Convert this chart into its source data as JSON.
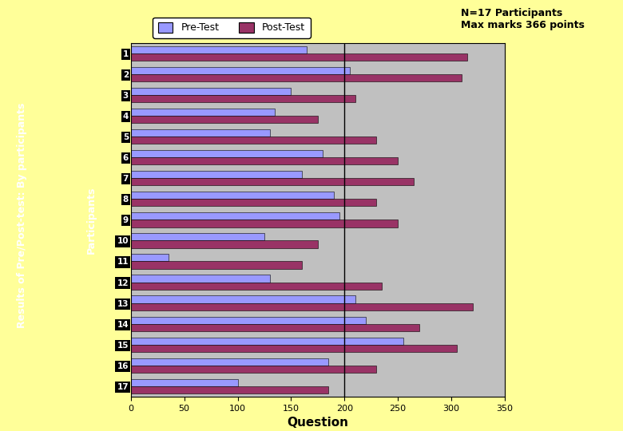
{
  "participants": [
    1,
    2,
    3,
    4,
    5,
    6,
    7,
    8,
    9,
    10,
    11,
    12,
    13,
    14,
    15,
    16,
    17
  ],
  "pre_test": [
    165,
    205,
    150,
    135,
    130,
    180,
    160,
    190,
    195,
    125,
    35,
    130,
    210,
    220,
    255,
    185,
    100
  ],
  "post_test": [
    315,
    310,
    210,
    175,
    230,
    250,
    265,
    230,
    250,
    175,
    160,
    235,
    320,
    270,
    305,
    230,
    185
  ],
  "pre_color": "#9999ff",
  "post_color": "#993366",
  "bg_outer": "#ffff99",
  "bg_left_panel": "#333399",
  "bg_plot": "#c0c0c0",
  "xlabel": "Question",
  "ylabel": "Participants",
  "legend_pre": "Pre-Test",
  "legend_post": "Post-Test",
  "note": "N=17 Participants\nMax marks 366 points",
  "title_left": "Results of Pre/Post-test: By participants",
  "xlim": [
    0,
    350
  ],
  "xticks": [
    0,
    50,
    100,
    150,
    200,
    250,
    300,
    350
  ]
}
